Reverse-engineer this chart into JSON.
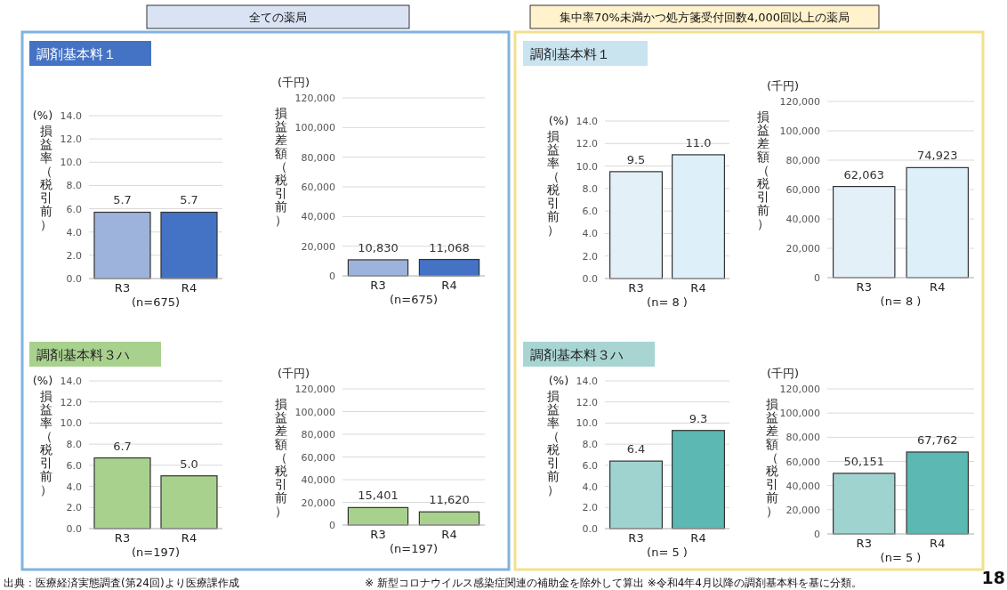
{
  "chart_data": [
    {
      "type": "other",
      "annotations": [
        "全ての薬局",
        "集中率70%未満かつ処方箋受付回数4,000回以上の薬局",
        "出典：医療経済実態調査(第24回)より医療課作成",
        "※ 新型コロナウイルス感染症関連の補助金を除外して算出 ※令和4年4月以降の調剤基本料を基に分類。",
        "18"
      ]
    },
    {
      "type": "bar",
      "title": "調剤基本料１",
      "ylabel": "損益率（税引前）",
      "annotations": [
        "(%)"
      ],
      "xlabel": "(n=675)",
      "categories": [
        "R3",
        "R4"
      ],
      "values": [
        5.7,
        5.7
      ],
      "value_labels": [
        "5.7",
        "5.7"
      ],
      "colors": [
        "#9db3dc",
        "#4472c4"
      ],
      "ylim": [
        0,
        14
      ],
      "yticks": [
        {
          "value": 0,
          "label": "0.0"
        },
        {
          "value": 2,
          "label": "2.0"
        },
        {
          "value": 4,
          "label": "4.0"
        },
        {
          "value": 6,
          "label": "6.0"
        },
        {
          "value": 8,
          "label": "8.0"
        },
        {
          "value": 10,
          "label": "10.0"
        },
        {
          "value": 12,
          "label": "12.0"
        },
        {
          "value": 14,
          "label": "14.0"
        }
      ],
      "grid": "y"
    },
    {
      "type": "bar",
      "ylabel": "損益差額（税引前）",
      "annotations": [
        "(千円)"
      ],
      "xlabel": "(n=675)",
      "categories": [
        "R3",
        "R4"
      ],
      "values": [
        10830,
        11068
      ],
      "value_labels": [
        "10,830",
        "11,068"
      ],
      "colors": [
        "#9db3dc",
        "#4472c4"
      ],
      "ylim": [
        0,
        120000
      ],
      "yticks": [
        {
          "value": 0,
          "label": "0"
        },
        {
          "value": 20000,
          "label": "20,000"
        },
        {
          "value": 40000,
          "label": "40,000"
        },
        {
          "value": 60000,
          "label": "60,000"
        },
        {
          "value": 80000,
          "label": "80,000"
        },
        {
          "value": 100000,
          "label": "100,000"
        },
        {
          "value": 120000,
          "label": "120,000"
        }
      ],
      "grid": "y"
    },
    {
      "type": "bar",
      "title": "調剤基本料３ハ",
      "ylabel": "損益率（税引前）",
      "annotations": [
        "(%)"
      ],
      "xlabel": "(n=197)",
      "categories": [
        "R3",
        "R4"
      ],
      "values": [
        6.7,
        5.0
      ],
      "value_labels": [
        "6.7",
        "5.0"
      ],
      "colors": [
        "#a9d18e",
        "#a9d18e"
      ],
      "ylim": [
        0,
        14
      ],
      "yticks": [
        {
          "value": 0,
          "label": "0.0"
        },
        {
          "value": 2,
          "label": "2.0"
        },
        {
          "value": 4,
          "label": "4.0"
        },
        {
          "value": 6,
          "label": "6.0"
        },
        {
          "value": 8,
          "label": "8.0"
        },
        {
          "value": 10,
          "label": "10.0"
        },
        {
          "value": 12,
          "label": "12.0"
        },
        {
          "value": 14,
          "label": "14.0"
        }
      ],
      "grid": "y"
    },
    {
      "type": "bar",
      "ylabel": "損益差額（税引前）",
      "annotations": [
        "(千円)"
      ],
      "xlabel": "(n=197)",
      "categories": [
        "R3",
        "R4"
      ],
      "values": [
        15401,
        11620
      ],
      "value_labels": [
        "15,401",
        "11,620"
      ],
      "colors": [
        "#a9d18e",
        "#a9d18e"
      ],
      "ylim": [
        0,
        120000
      ],
      "yticks": [
        {
          "value": 0,
          "label": "0"
        },
        {
          "value": 20000,
          "label": "20,000"
        },
        {
          "value": 40000,
          "label": "40,000"
        },
        {
          "value": 60000,
          "label": "60,000"
        },
        {
          "value": 80000,
          "label": "80,000"
        },
        {
          "value": 100000,
          "label": "100,000"
        },
        {
          "value": 120000,
          "label": "120,000"
        }
      ],
      "grid": "y"
    },
    {
      "type": "bar",
      "title": "調剤基本料１",
      "ylabel": "損益率（税引前）",
      "annotations": [
        "(%)"
      ],
      "xlabel": "(n= 8 )",
      "categories": [
        "R3",
        "R4"
      ],
      "values": [
        9.5,
        11.0
      ],
      "value_labels": [
        "9.5",
        "11.0"
      ],
      "colors": [
        "#e3f0f8",
        "#ddf0fa"
      ],
      "ylim": [
        0,
        14
      ],
      "yticks": [
        {
          "value": 0,
          "label": "0.0"
        },
        {
          "value": 2,
          "label": "2.0"
        },
        {
          "value": 4,
          "label": "4.0"
        },
        {
          "value": 6,
          "label": "6.0"
        },
        {
          "value": 8,
          "label": "8.0"
        },
        {
          "value": 10,
          "label": "10.0"
        },
        {
          "value": 12,
          "label": "12.0"
        },
        {
          "value": 14,
          "label": "14.0"
        }
      ],
      "grid": "y"
    },
    {
      "type": "bar",
      "ylabel": "損益差額（税引前）",
      "annotations": [
        "(千円)"
      ],
      "xlabel": "(n= 8 )",
      "categories": [
        "R3",
        "R4"
      ],
      "values": [
        62063,
        74923
      ],
      "value_labels": [
        "62,063",
        "74,923"
      ],
      "colors": [
        "#e3f0f8",
        "#ddf0fa"
      ],
      "ylim": [
        0,
        120000
      ],
      "yticks": [
        {
          "value": 0,
          "label": "0"
        },
        {
          "value": 20000,
          "label": "20,000"
        },
        {
          "value": 40000,
          "label": "40,000"
        },
        {
          "value": 60000,
          "label": "60,000"
        },
        {
          "value": 80000,
          "label": "80,000"
        },
        {
          "value": 100000,
          "label": "100,000"
        },
        {
          "value": 120000,
          "label": "120,000"
        }
      ],
      "grid": "y"
    },
    {
      "type": "bar",
      "title": "調剤基本料３ハ",
      "ylabel": "損益率（税引前）",
      "annotations": [
        "(%)"
      ],
      "xlabel": "(n= 5 )",
      "categories": [
        "R3",
        "R4"
      ],
      "values": [
        6.4,
        9.3
      ],
      "value_labels": [
        "6.4",
        "9.3"
      ],
      "colors": [
        "#9fd3cf",
        "#5cb8b2"
      ],
      "ylim": [
        0,
        14
      ],
      "yticks": [
        {
          "value": 0,
          "label": "0.0"
        },
        {
          "value": 2,
          "label": "2.0"
        },
        {
          "value": 4,
          "label": "4.0"
        },
        {
          "value": 6,
          "label": "6.0"
        },
        {
          "value": 8,
          "label": "8.0"
        },
        {
          "value": 10,
          "label": "10.0"
        },
        {
          "value": 12,
          "label": "12.0"
        },
        {
          "value": 14,
          "label": "14.0"
        }
      ],
      "grid": "y"
    },
    {
      "type": "bar",
      "ylabel": "損益差額（税引前）",
      "annotations": [
        "(千円)"
      ],
      "xlabel": "(n= 5 )",
      "categories": [
        "R3",
        "R4"
      ],
      "values": [
        50151,
        67762
      ],
      "value_labels": [
        "50,151",
        "67,762"
      ],
      "colors": [
        "#9fd3cf",
        "#5cb8b2"
      ],
      "ylim": [
        0,
        120000
      ],
      "yticks": [
        {
          "value": 0,
          "label": "0"
        },
        {
          "value": 20000,
          "label": "20,000"
        },
        {
          "value": 40000,
          "label": "40,000"
        },
        {
          "value": 60000,
          "label": "60,000"
        },
        {
          "value": 80000,
          "label": "80,000"
        },
        {
          "value": 100000,
          "label": "100,000"
        },
        {
          "value": 120000,
          "label": "120,000"
        }
      ],
      "grid": "y"
    }
  ]
}
